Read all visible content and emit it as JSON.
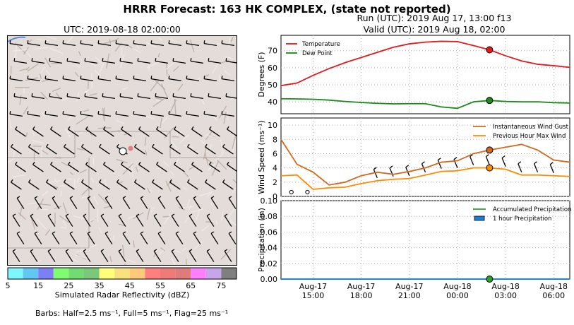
{
  "title": "HRRR Forecast: 163 HK COMPLEX, (state not reported)",
  "run_line": "Run (UTC): 2019 Aug 17, 13:00 f13",
  "valid_line": "Valid (UTC): 2019 Aug 18, 02:00",
  "map": {
    "utc_label": "UTC: 2019-08-18 02:00:00",
    "colorbar_label": "Simulated Radar Reflectivity (dBZ)",
    "colorbar_ticks": [
      "5",
      "15",
      "25",
      "35",
      "45",
      "55",
      "65",
      "75"
    ],
    "colorbar_colors": [
      "#7ff7ff",
      "#63c7f4",
      "#7f7ff5",
      "#7ffc6f",
      "#72dc72",
      "#7cc87b",
      "#ffff7b",
      "#f9e27c",
      "#ffc97c",
      "#ff7f7f",
      "#ef7a7a",
      "#df7b7b",
      "#ff7fff",
      "#c6a5e8",
      "#7f7f7f"
    ],
    "barbs_note": "Barbs: Half=2.5 ms⁻¹, Full=5 ms⁻¹, Flag=25 ms⁻¹"
  },
  "chart_data": [
    {
      "type": "line",
      "ylabel": "Degrees (F)",
      "ylim": [
        33,
        79
      ],
      "yticks": [
        40,
        50,
        60,
        70
      ],
      "grid": true,
      "legend_position": "top-left",
      "x_hours": [
        13,
        14,
        15,
        16,
        17,
        18,
        19,
        20,
        21,
        22,
        23,
        24,
        25,
        26,
        27,
        28,
        29,
        30,
        31
      ],
      "series": [
        {
          "name": "Temperature",
          "color": "#e31a1c",
          "values": [
            49.5,
            51,
            55.5,
            59.5,
            63,
            66,
            69,
            72,
            74,
            75,
            75.5,
            75.3,
            73,
            70.5,
            67,
            64,
            62,
            61.2,
            60.2
          ]
        },
        {
          "name": "Dew Point",
          "color": "#1a8a1a",
          "values": [
            41.8,
            41.7,
            41.5,
            41,
            40.2,
            39.6,
            39.1,
            38.8,
            38.9,
            38.9,
            37,
            36.2,
            40,
            40.8,
            40.2,
            40,
            40,
            39.5,
            39.3
          ]
        }
      ],
      "marker_hour": 26,
      "marker_values": [
        70.5,
        40.8
      ]
    },
    {
      "type": "line",
      "ylabel": "Wind Speed (ms⁻¹)",
      "ylim": [
        0,
        11
      ],
      "yticks": [
        0,
        2,
        4,
        6,
        8,
        10
      ],
      "grid": true,
      "legend_position": "top-right",
      "x_hours": [
        13,
        14,
        15,
        16,
        17,
        18,
        19,
        20,
        21,
        22,
        23,
        24,
        25,
        26,
        27,
        28,
        29,
        30,
        31
      ],
      "series": [
        {
          "name": "Instantaneous Wind Gust",
          "color": "#d2691e",
          "values": [
            8,
            4.5,
            3.4,
            1.6,
            2,
            2.9,
            3.4,
            3.1,
            3.5,
            4,
            4.8,
            5,
            6,
            6.5,
            6.9,
            7.3,
            6.5,
            5.1,
            4.8
          ]
        },
        {
          "name": "Previous Hour Max Wind",
          "color": "#ff8c00",
          "values": [
            2.9,
            3,
            1,
            1.2,
            1.3,
            1.8,
            2.2,
            2.4,
            2.5,
            3,
            3.5,
            3.6,
            4,
            4,
            3.8,
            3,
            3,
            2.9,
            2.8
          ]
        }
      ],
      "marker_hour": 26,
      "marker_values": [
        6.5,
        4
      ],
      "calm_hours": [
        14,
        15
      ]
    },
    {
      "type": "line",
      "ylabel": "Precipitation (in)",
      "ylim": [
        0,
        0.1
      ],
      "yticks": [
        "0.00",
        "0.02",
        "0.04",
        "0.06",
        "0.08",
        "0.10"
      ],
      "grid": true,
      "legend_position": "top-right",
      "x_hours": [
        13,
        31
      ],
      "series": [
        {
          "name": "Accumulated Precipitation",
          "color": "#2ca02c",
          "values": [
            0,
            0
          ]
        },
        {
          "name": "1 hour Precipitation",
          "color": "#1f7fd8",
          "values": [
            0,
            0
          ]
        }
      ],
      "marker_hour": 26,
      "marker_values": [
        0
      ]
    }
  ],
  "x_axis": {
    "ticks": [
      {
        "hour": 15,
        "day": "Aug-17",
        "time": "15:00"
      },
      {
        "hour": 18,
        "day": "Aug-17",
        "time": "18:00"
      },
      {
        "hour": 21,
        "day": "Aug-17",
        "time": "21:00"
      },
      {
        "hour": 24,
        "day": "Aug-18",
        "time": "00:00"
      },
      {
        "hour": 27,
        "day": "Aug-18",
        "time": "03:00"
      },
      {
        "hour": 30,
        "day": "Aug-18",
        "time": "06:00"
      }
    ]
  }
}
